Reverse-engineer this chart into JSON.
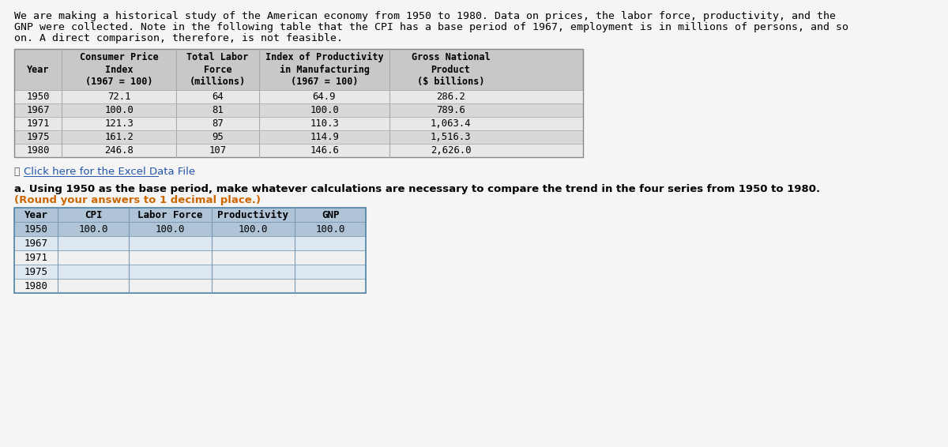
{
  "intro_text": "We are making a historical study of the American economy from 1950 to 1980. Data on prices, the labor force, productivity, and the\nGNP were collected. Note in the following table that the CPI has a base period of 1967, employment is in millions of persons, and so\non. A direct comparison, therefore, is not feasible.",
  "top_table": {
    "col_headers": [
      "Year",
      "Consumer Price\nIndex\n(1967 = 100)",
      "Total Labor\nForce\n(millions)",
      "Index of Productivity\nin Manufacturing\n(1967 = 100)",
      "Gross National\nProduct\n($ billions)"
    ],
    "rows": [
      [
        "1950",
        "72.1",
        "64",
        "64.9",
        "286.2"
      ],
      [
        "1967",
        "100.0",
        "81",
        "100.0",
        "789.6"
      ],
      [
        "1971",
        "121.3",
        "87",
        "110.3",
        "1,063.4"
      ],
      [
        "1975",
        "161.2",
        "95",
        "114.9",
        "1,516.3"
      ],
      [
        "1980",
        "246.8",
        "107",
        "146.6",
        "2,626.0"
      ]
    ]
  },
  "click_text": "Click here for the Excel Data File",
  "question_text_bold": "a. Using 1950 as the base period, make whatever calculations are necessary to compare the trend in the four series from 1950 to 1980.",
  "question_text_normal": "(Round your answers to 1 decimal place.)",
  "bottom_table": {
    "col_headers": [
      "Year",
      "CPI",
      "Labor Force",
      "Productivity",
      "GNP"
    ],
    "rows": [
      [
        "1950",
        "100.0",
        "100.0",
        "100.0",
        "100.0"
      ],
      [
        "1967",
        "",
        "",
        "",
        ""
      ],
      [
        "1971",
        "",
        "",
        "",
        ""
      ],
      [
        "1975",
        "",
        "",
        "",
        ""
      ],
      [
        "1980",
        "",
        "",
        "",
        ""
      ]
    ]
  },
  "top_table_header_bg": "#c8c8c8",
  "top_table_row_bg_odd": "#e8e8e8",
  "top_table_row_bg_even": "#d8d8d8",
  "bottom_table_header_bg": "#b0c4d8",
  "bottom_table_row1_bg": "#b0c4d8",
  "bottom_table_row_bg": "#f0f0f0",
  "bottom_table_alt_bg": "#dde8f0",
  "bg_color": "#f5f5f5"
}
